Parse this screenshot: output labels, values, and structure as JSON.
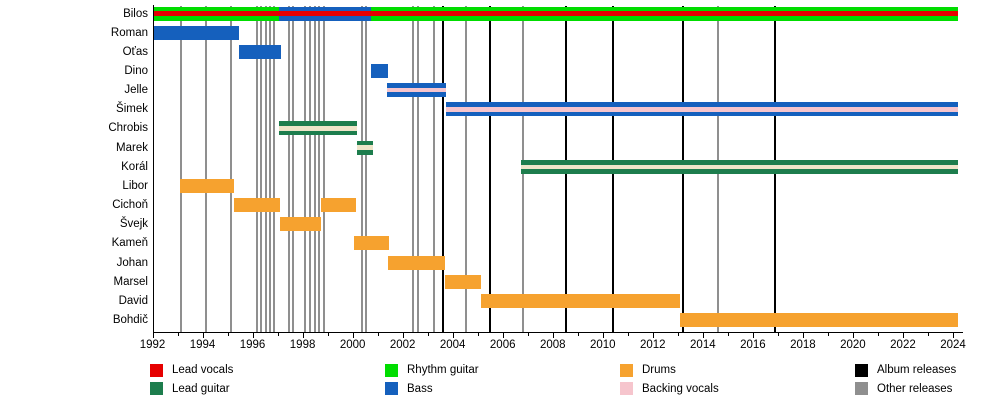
{
  "chart_data": {
    "type": "bar",
    "subtype": "band-members-timeline-gantt",
    "title": "",
    "xlabel": "",
    "ylabel": "",
    "grid": false,
    "legend_position": "bottom",
    "x_axis": {
      "min": 1992,
      "max": 2024.3,
      "minor_tick_step_years": 1,
      "tick_labels": [
        "1992",
        "1994",
        "1996",
        "1998",
        "2000",
        "2002",
        "2004",
        "2006",
        "2008",
        "2010",
        "2012",
        "2014",
        "2016",
        "2018",
        "2020",
        "2022",
        "2024"
      ],
      "tick_label_years": [
        1992,
        1994,
        1996,
        1998,
        2000,
        2002,
        2004,
        2006,
        2008,
        2010,
        2012,
        2014,
        2016,
        2018,
        2020,
        2022,
        2024
      ]
    },
    "members": [
      {
        "name": "Bilos",
        "segments": [
          {
            "role": "rhythm_guitar",
            "start": 1992.0,
            "end": 1997.06
          },
          {
            "role": "bass",
            "start": 1997.06,
            "end": 2000.73
          },
          {
            "role": "rhythm_guitar",
            "start": 2000.73,
            "end": 2024.2
          }
        ],
        "overlays": [
          {
            "role": "lead_vocals",
            "start": 1992.0,
            "end": 2024.2,
            "variant": "red"
          }
        ]
      },
      {
        "name": "Roman",
        "segments": [
          {
            "role": "bass",
            "start": 1992.0,
            "end": 1995.45
          }
        ],
        "overlays": []
      },
      {
        "name": "Oťas",
        "segments": [
          {
            "role": "bass",
            "start": 1995.45,
            "end": 1997.14
          }
        ],
        "overlays": []
      },
      {
        "name": "Dino",
        "segments": [
          {
            "role": "bass",
            "start": 2000.73,
            "end": 2001.41
          }
        ],
        "overlays": []
      },
      {
        "name": "Jelle",
        "segments": [
          {
            "role": "bass",
            "start": 2001.37,
            "end": 2003.72
          }
        ],
        "overlays": [
          {
            "role": "backing_vocals",
            "start": 2001.37,
            "end": 2003.72,
            "variant": "pink"
          }
        ]
      },
      {
        "name": "Šimek",
        "segments": [
          {
            "role": "bass",
            "start": 2003.72,
            "end": 2024.2
          }
        ],
        "overlays": [
          {
            "role": "backing_vocals",
            "start": 2003.72,
            "end": 2024.2,
            "variant": "pink"
          }
        ]
      },
      {
        "name": "Chrobis",
        "segments": [
          {
            "role": "lead_guitar",
            "start": 1997.06,
            "end": 2000.16
          }
        ],
        "overlays": [
          {
            "role": "backing_vocals",
            "start": 1997.06,
            "end": 2000.16,
            "variant": "cream"
          }
        ]
      },
      {
        "name": "Marek",
        "segments": [
          {
            "role": "lead_guitar",
            "start": 2000.16,
            "end": 2000.8
          }
        ],
        "overlays": [
          {
            "role": "backing_vocals",
            "start": 2000.16,
            "end": 2000.8,
            "variant": "cream"
          }
        ]
      },
      {
        "name": "Korál",
        "segments": [
          {
            "role": "lead_guitar",
            "start": 2006.75,
            "end": 2024.2
          }
        ],
        "overlays": [
          {
            "role": "backing_vocals",
            "start": 2006.75,
            "end": 2024.2,
            "variant": "cream"
          }
        ]
      },
      {
        "name": "Libor",
        "segments": [
          {
            "role": "drums",
            "start": 1993.1,
            "end": 1995.26
          }
        ],
        "overlays": []
      },
      {
        "name": "Cichoň",
        "segments": [
          {
            "role": "drums",
            "start": 1995.26,
            "end": 1997.1
          },
          {
            "role": "drums",
            "start": 1998.73,
            "end": 2000.12
          }
        ],
        "overlays": []
      },
      {
        "name": "Švejk",
        "segments": [
          {
            "role": "drums",
            "start": 1997.1,
            "end": 1998.73
          }
        ],
        "overlays": []
      },
      {
        "name": "Kameň",
        "segments": [
          {
            "role": "drums",
            "start": 2000.04,
            "end": 2001.44
          }
        ],
        "overlays": []
      },
      {
        "name": "Johan",
        "segments": [
          {
            "role": "drums",
            "start": 2001.41,
            "end": 2003.68
          }
        ],
        "overlays": []
      },
      {
        "name": "Marsel",
        "segments": [
          {
            "role": "drums",
            "start": 2003.68,
            "end": 2005.12
          }
        ],
        "overlays": []
      },
      {
        "name": "David",
        "segments": [
          {
            "role": "drums",
            "start": 2005.12,
            "end": 2013.1
          }
        ],
        "overlays": []
      },
      {
        "name": "Bohdič",
        "segments": [
          {
            "role": "drums",
            "start": 2013.1,
            "end": 2024.2
          }
        ],
        "overlays": []
      }
    ],
    "events": {
      "album_releases": [
        2003.63,
        2005.5,
        2008.53,
        2010.4,
        2013.2,
        2016.9
      ],
      "other_releases": [
        1993.15,
        1994.14,
        1995.13,
        1996.17,
        1996.33,
        1996.53,
        1996.69,
        1996.85,
        1997.44,
        1997.63,
        1998.08,
        1998.28,
        1998.48,
        1998.65,
        1998.84,
        2000.36,
        2000.52,
        2002.43,
        2002.63,
        2003.25,
        2004.55,
        2006.82,
        2014.6
      ]
    },
    "legend": {
      "items": [
        {
          "label": "Lead vocals",
          "role": "lead_vocals"
        },
        {
          "label": "Lead guitar",
          "role": "lead_guitar"
        },
        {
          "label": "Rhythm guitar",
          "role": "rhythm_guitar"
        },
        {
          "label": "Bass",
          "role": "bass"
        },
        {
          "label": "Drums",
          "role": "drums"
        },
        {
          "label": "Backing vocals",
          "role": "backing_vocals"
        },
        {
          "label": "Album releases",
          "role": "album_releases"
        },
        {
          "label": "Other releases",
          "role": "other_releases"
        }
      ]
    }
  },
  "colors": {
    "lead_vocals": "#e60000",
    "lead_guitar": "#1d7d4d",
    "rhythm_guitar": "#00dd00",
    "bass": "#1560bd",
    "drums": "#f6a22f",
    "backing_vocals": "#f6c5cd",
    "backing_vocals_on_green": "#eee5c9",
    "album_releases": "#000000",
    "other_releases": "#8f8f8f"
  }
}
